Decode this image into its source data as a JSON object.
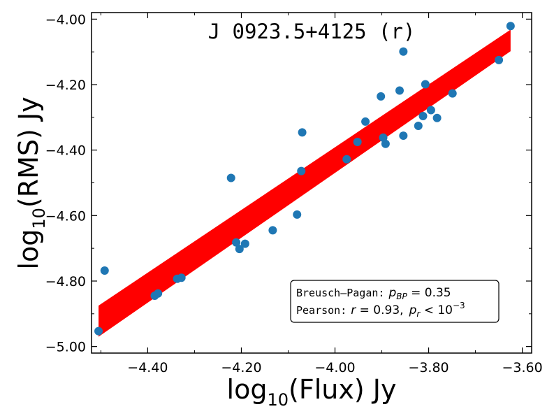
{
  "chart_data": {
    "type": "scatter",
    "title": "J 0923.5+4125 (r)",
    "xlabel_main": "log",
    "xlabel_sub": "10",
    "xlabel_tail": "(Flux) Jy",
    "ylabel_main": "log",
    "ylabel_sub": "10",
    "ylabel_tail": "(RMS) Jy",
    "xlim": [
      -4.52,
      -3.58
    ],
    "ylim": [
      -5.02,
      -3.98
    ],
    "xticks": [
      -4.4,
      -4.2,
      -4.0,
      -3.8,
      -3.6
    ],
    "xtick_labels": [
      "−4.40",
      "−4.20",
      "−4.00",
      "−3.80",
      "−3.60"
    ],
    "yticks": [
      -5.0,
      -4.8,
      -4.6,
      -4.4,
      -4.2,
      -4.0
    ],
    "ytick_labels": [
      "−5.00",
      "−4.80",
      "−4.60",
      "−4.40",
      "−4.20",
      "−4.00"
    ],
    "grid": false,
    "colors": {
      "points": "#1f77b4",
      "fit_band": "#ff0000"
    },
    "points": [
      {
        "x": -4.505,
        "y": -4.953
      },
      {
        "x": -4.492,
        "y": -4.768
      },
      {
        "x": -4.385,
        "y": -4.845
      },
      {
        "x": -4.378,
        "y": -4.838
      },
      {
        "x": -4.337,
        "y": -4.793
      },
      {
        "x": -4.328,
        "y": -4.79
      },
      {
        "x": -4.222,
        "y": -4.485
      },
      {
        "x": -4.211,
        "y": -4.682
      },
      {
        "x": -4.204,
        "y": -4.702
      },
      {
        "x": -4.192,
        "y": -4.686
      },
      {
        "x": -4.133,
        "y": -4.645
      },
      {
        "x": -4.081,
        "y": -4.597
      },
      {
        "x": -4.072,
        "y": -4.464
      },
      {
        "x": -4.07,
        "y": -4.346
      },
      {
        "x": -3.975,
        "y": -4.428
      },
      {
        "x": -3.952,
        "y": -4.375
      },
      {
        "x": -3.935,
        "y": -4.313
      },
      {
        "x": -3.902,
        "y": -4.236
      },
      {
        "x": -3.897,
        "y": -4.362
      },
      {
        "x": -3.892,
        "y": -4.381
      },
      {
        "x": -3.862,
        "y": -4.218
      },
      {
        "x": -3.854,
        "y": -4.099
      },
      {
        "x": -3.854,
        "y": -4.356
      },
      {
        "x": -3.822,
        "y": -4.326
      },
      {
        "x": -3.812,
        "y": -4.296
      },
      {
        "x": -3.807,
        "y": -4.199
      },
      {
        "x": -3.795,
        "y": -4.278
      },
      {
        "x": -3.782,
        "y": -4.302
      },
      {
        "x": -3.749,
        "y": -4.227
      },
      {
        "x": -3.65,
        "y": -4.125
      },
      {
        "x": -3.625,
        "y": -4.021
      }
    ],
    "fit_band": {
      "x_start": -4.505,
      "x_end": -3.625,
      "upper_start": -4.875,
      "upper_end": -4.032,
      "lower_start": -4.97,
      "lower_end": -4.098
    },
    "annotations": {
      "bp_label": "Breusch–Pagan:",
      "bp_symbol": "p",
      "bp_sub": "BP",
      "bp_value": " = 0.35",
      "pearson_label": "Pearson:",
      "pearson_r": "r",
      "pearson_r_value": " = 0.93,",
      "pearson_p": "p",
      "pearson_p_sub": "r",
      "pearson_p_cmp": " < 10",
      "pearson_p_exp": "−3"
    }
  }
}
